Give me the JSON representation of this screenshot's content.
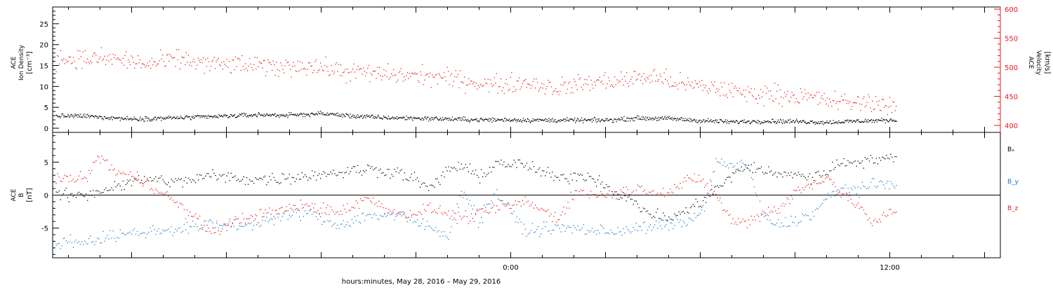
{
  "chart_data": [
    {
      "type": "scatter",
      "panel": "ace-plasma",
      "ylabel": "ACE Ion Density [cm⁻³]",
      "ylabel_lines": [
        "ACE",
        "Ion Density",
        "[cm⁻³]"
      ],
      "ylim": [
        -1,
        29
      ],
      "yticks": [
        "0",
        "5",
        "10",
        "15",
        "20",
        "25"
      ],
      "y2label": "ACE Velocity [km/s]",
      "y2label_lines": [
        "ACE",
        "Velocity",
        "[km/s]"
      ],
      "y2lim": [
        400,
        600
      ],
      "y2ticks": [
        "400",
        "450",
        "500",
        "550",
        "600"
      ],
      "series": [
        {
          "axis": "left",
          "color": "#000000",
          "x": [
            -13.5,
            -12.0,
            -10.0,
            -8.0,
            -7.0,
            -6.0,
            -5.0,
            -4.0,
            -3.0,
            -2.0,
            -1.0,
            0.0,
            1.0,
            2.0,
            3.0,
            4.0,
            5.0,
            6.0,
            7.0,
            8.0,
            9.0,
            10.0,
            11.0,
            12.0
          ],
          "y": [
            3.0,
            2.3,
            2.7,
            3.3,
            3.2,
            3.6,
            3.0,
            2.6,
            2.5,
            2.3,
            2.1,
            2.1,
            2.0,
            2.0,
            2.0,
            2.5,
            2.4,
            1.9,
            1.6,
            1.8,
            1.7,
            1.5,
            1.8,
            2.0
          ]
        },
        {
          "axis": "right",
          "color": "#e8191c",
          "x": [
            -13.5,
            -12.5,
            -11.5,
            -10.5,
            -9.5,
            -8.5,
            -7.5,
            -6.5,
            -5.5,
            -4.5,
            -3.5,
            -2.5,
            -1.5,
            -0.5,
            0.5,
            1.5,
            2.5,
            3.5,
            4.5,
            5.5,
            6.5,
            7.5,
            8.5,
            9.5,
            10.5,
            11.5,
            12.0
          ],
          "y": [
            515,
            515,
            505,
            515,
            505,
            505,
            500,
            505,
            495,
            490,
            487,
            485,
            478,
            470,
            475,
            465,
            475,
            478,
            485,
            470,
            465,
            455,
            455,
            448,
            440,
            440,
            435
          ]
        }
      ]
    },
    {
      "type": "scatter",
      "panel": "ace-magnetic-field",
      "ylabel": "ACE B [nT]",
      "ylabel_lines": [
        "ACE",
        "B",
        "[nT]"
      ],
      "ylim": [
        -9.5,
        9.5
      ],
      "yticks": [
        "-5",
        "0",
        "5"
      ],
      "series": [
        {
          "name": "Bₓ",
          "color": "#000000",
          "x": [
            -13.5,
            -12.5,
            -11.5,
            -10.5,
            -9.5,
            -8.5,
            -7.5,
            -6.5,
            -5.5,
            -4.5,
            -3.5,
            -2.5,
            -2.0,
            -1.5,
            -1.0,
            -0.5,
            0.5,
            1.5,
            2.0,
            2.5,
            3.5,
            4.5,
            5.0,
            5.5,
            6.0,
            6.5,
            7.0,
            7.5,
            8.5,
            9.0,
            9.5,
            10.5,
            11.5,
            12.2
          ],
          "y": [
            0,
            1.5,
            2.5,
            2.0,
            3.0,
            2.5,
            2.5,
            3.0,
            3.5,
            4.0,
            3.5,
            1.0,
            4.0,
            4.5,
            2.5,
            5.0,
            4.5,
            2.5,
            3.0,
            3.0,
            0.0,
            -3.0,
            -3.5,
            -2.5,
            -1.0,
            1.0,
            3.0,
            4.5,
            3.0,
            3.5,
            2.5,
            5.0,
            5.5,
            5.5
          ]
        },
        {
          "name": "B_y",
          "color": "#1f78c8",
          "x": [
            -13.5,
            -12.5,
            -11.5,
            -10.5,
            -9.5,
            -8.5,
            -7.5,
            -6.5,
            -5.5,
            -4.5,
            -3.5,
            -2.0,
            -1.5,
            -1.0,
            -0.5,
            0.5,
            1.0,
            2.0,
            3.0,
            4.0,
            5.0,
            5.5,
            6.0,
            6.5,
            7.0,
            7.5,
            8.0,
            8.5,
            9.5,
            10.0,
            10.5,
            11.0,
            11.5,
            12.2
          ],
          "y": [
            -7.0,
            -6.0,
            -5.5,
            -5.0,
            -4.5,
            -4.5,
            -3.5,
            -2.5,
            -4.5,
            -3.0,
            -3.0,
            -6.0,
            1.0,
            -4.0,
            0.5,
            -5.5,
            -5.0,
            -5.0,
            -5.5,
            -5.0,
            -4.5,
            -4.0,
            -3.0,
            5.0,
            4.5,
            4.5,
            -3.5,
            -4.5,
            -3.0,
            -0.5,
            1.0,
            1.0,
            1.5,
            2.0
          ]
        },
        {
          "name": "B_z",
          "color": "#e8191c",
          "x": [
            -13.5,
            -13.0,
            -12.5,
            -11.5,
            -10.5,
            -9.5,
            -8.5,
            -7.5,
            -6.5,
            -5.5,
            -4.5,
            -3.5,
            -2.5,
            -1.5,
            -0.5,
            0.5,
            1.5,
            2.0,
            3.0,
            4.0,
            5.0,
            5.5,
            6.0,
            6.5,
            7.0,
            7.5,
            8.0,
            8.5,
            9.0,
            9.5,
            10.0,
            10.5,
            11.0,
            11.5,
            12.0
          ],
          "y": [
            2.5,
            6.0,
            3.5,
            2.0,
            -1.5,
            -5.5,
            -3.5,
            -2.5,
            -1.5,
            -2.5,
            -0.5,
            -3.0,
            -2.0,
            -3.5,
            -2.0,
            -1.0,
            -3.5,
            0.5,
            0.0,
            1.0,
            0.5,
            2.0,
            2.5,
            0.0,
            -4.0,
            -4.0,
            -2.5,
            -2.0,
            0.5,
            1.5,
            3.0,
            0.0,
            -1.5,
            -4.5,
            -2.5
          ]
        }
      ],
      "legend": [
        "Bₓ",
        "B_y",
        "B_z"
      ],
      "legend_placement": "right",
      "zero_line": true
    }
  ],
  "x_axis": {
    "xlabel": "hours:minutes, May 28, 2016 – May 29, 2016",
    "xlim": [
      -14.5,
      15.5
    ],
    "tick_labels": [
      {
        "x": 0,
        "label": "0:00"
      },
      {
        "x": 12,
        "label": "12:00"
      }
    ]
  }
}
